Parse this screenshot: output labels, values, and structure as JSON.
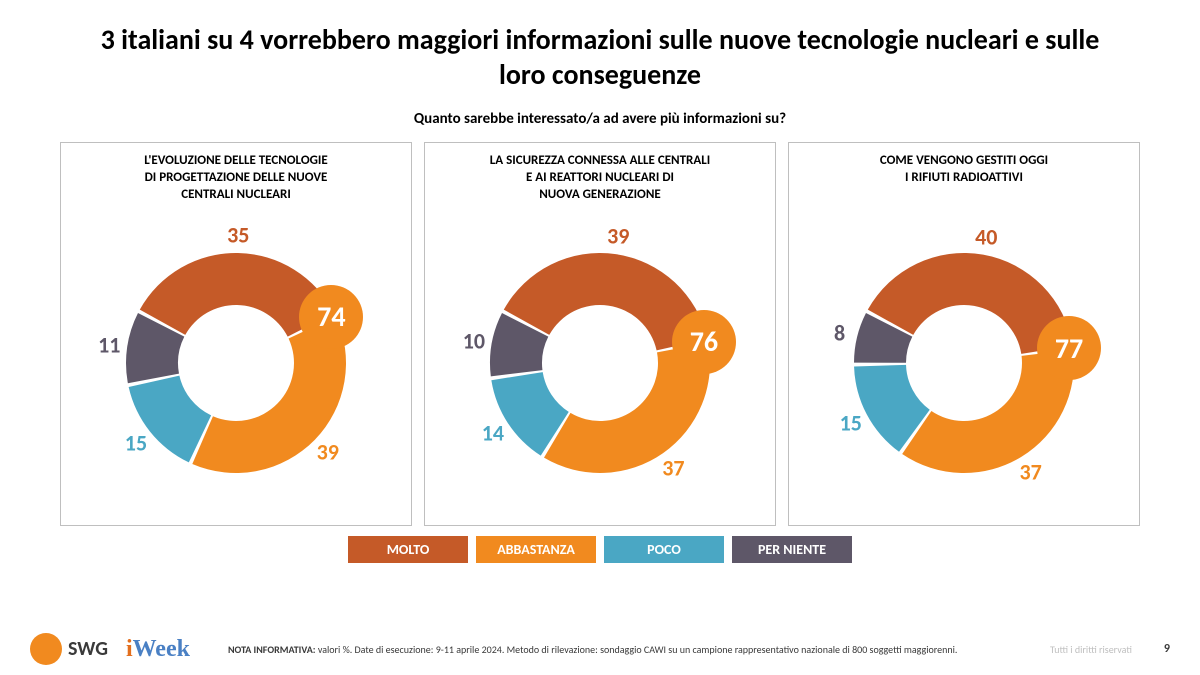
{
  "title": "3 italiani su 4 vorrebbero maggiori informazioni sulle nuove tecnologie nucleari e sulle loro conseguenze",
  "subtitle": "Quanto sarebbe interessato/a ad avere più informazioni su?",
  "colors": {
    "molto": "#c55a28",
    "abbastanza": "#f18a1f",
    "poco": "#4aa7c4",
    "perniente": "#5e5768",
    "badge_bg": "#f18a1f",
    "badge_text": "#ffffff",
    "box_border": "#bfbfbf"
  },
  "donut": {
    "outer_radius": 110,
    "inner_radius": 58,
    "gap_deg": 2
  },
  "legend": [
    {
      "label": "MOLTO",
      "color": "#c55a28"
    },
    {
      "label": "ABBASTANZA",
      "color": "#f18a1f"
    },
    {
      "label": "POCO",
      "color": "#4aa7c4"
    },
    {
      "label": "PER NIENTE",
      "color": "#5e5768"
    }
  ],
  "charts": [
    {
      "label": "L'EVOLUZIONE DELLE TECNOLOGIE\nDI PROGETTAZIONE DELLE NUOVE\nCENTRALI NUCLEARI",
      "segments": [
        {
          "name": "molto",
          "value": 35,
          "color": "#c55a28"
        },
        {
          "name": "abbastanza",
          "value": 39,
          "color": "#f18a1f"
        },
        {
          "name": "poco",
          "value": 15,
          "color": "#4aa7c4"
        },
        {
          "name": "perniente",
          "value": 11,
          "color": "#5e5768"
        }
      ],
      "badge": 74
    },
    {
      "label": "LA SICUREZZA CONNESSA ALLE CENTRALI\nE AI REATTORI NUCLEARI DI\nNUOVA GENERAZIONE",
      "segments": [
        {
          "name": "molto",
          "value": 39,
          "color": "#c55a28"
        },
        {
          "name": "abbastanza",
          "value": 37,
          "color": "#f18a1f"
        },
        {
          "name": "poco",
          "value": 14,
          "color": "#4aa7c4"
        },
        {
          "name": "perniente",
          "value": 10,
          "color": "#5e5768"
        }
      ],
      "badge": 76
    },
    {
      "label": "COME VENGONO GESTITI OGGI\nI RIFIUTI RADIOATTIVI",
      "segments": [
        {
          "name": "molto",
          "value": 40,
          "color": "#c55a28"
        },
        {
          "name": "abbastanza",
          "value": 37,
          "color": "#f18a1f"
        },
        {
          "name": "poco",
          "value": 15,
          "color": "#4aa7c4"
        },
        {
          "name": "perniente",
          "value": 8,
          "color": "#5e5768"
        }
      ],
      "badge": 77
    }
  ],
  "footer": {
    "swg": "SWG",
    "iweek_i": "i",
    "iweek_rest": "Week",
    "nota_label": "NOTA INFORMATIVA:",
    "nota_text": " valori %. Date di esecuzione: 9-11 aprile 2024. Metodo di rilevazione: sondaggio CAWI su un campione rappresentativo nazionale di 800 soggetti maggiorenni.",
    "rights": "Tutti i diritti riservati",
    "page": "9"
  }
}
